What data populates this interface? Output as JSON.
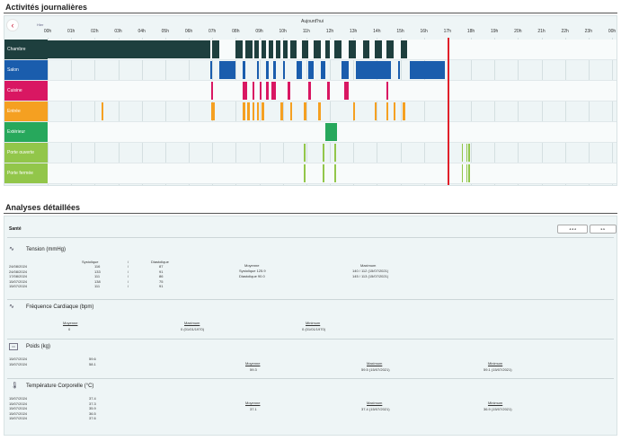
{
  "section1": {
    "title": "Activités journalières"
  },
  "timeline": {
    "back_label": "‹",
    "small_label": "Hier",
    "today_label": "Aujourd'hui",
    "hours": [
      "00h",
      "01h",
      "02h",
      "03h",
      "04h",
      "05h",
      "06h",
      "07h",
      "08h",
      "09h",
      "10h",
      "11h",
      "12h",
      "13h",
      "14h",
      "15h",
      "16h",
      "17h",
      "18h",
      "19h",
      "20h",
      "21h",
      "22h",
      "23h",
      "00h"
    ],
    "now_hour": 17.0,
    "rows": [
      {
        "label": "Chambre",
        "color": "#1e3f3e",
        "segments": [
          [
            0,
            6.9
          ],
          [
            7.0,
            7.3
          ],
          [
            8.0,
            8.3
          ],
          [
            8.4,
            8.7
          ],
          [
            8.8,
            9.0
          ],
          [
            9.1,
            9.3
          ],
          [
            9.4,
            9.6
          ],
          [
            9.7,
            9.9
          ],
          [
            10.0,
            10.2
          ],
          [
            10.3,
            10.6
          ],
          [
            10.8,
            11.1
          ],
          [
            11.3,
            11.6
          ],
          [
            11.8,
            12.0
          ],
          [
            12.2,
            12.5
          ],
          [
            12.8,
            13.1
          ],
          [
            13.4,
            13.7
          ],
          [
            13.9,
            14.2
          ],
          [
            14.4,
            14.7
          ],
          [
            15.0,
            15.3
          ]
        ]
      },
      {
        "label": "Salon",
        "color": "#1a5dad",
        "segments": [
          [
            6.9,
            7.0
          ],
          [
            7.3,
            8.0
          ],
          [
            8.3,
            8.4
          ],
          [
            8.9,
            9.0
          ],
          [
            9.3,
            9.4
          ],
          [
            9.6,
            9.7
          ],
          [
            10.0,
            10.1
          ],
          [
            10.6,
            10.8
          ],
          [
            11.1,
            11.3
          ],
          [
            11.6,
            11.8
          ],
          [
            12.5,
            12.8
          ],
          [
            13.1,
            14.6
          ],
          [
            14.9,
            15.0
          ],
          [
            15.4,
            16.9
          ]
        ]
      },
      {
        "label": "Cuisine",
        "color": "#d91762",
        "segments": [
          [
            6.95,
            7.05
          ],
          [
            8.3,
            8.5
          ],
          [
            8.7,
            8.8
          ],
          [
            9.0,
            9.1
          ],
          [
            9.3,
            9.4
          ],
          [
            9.5,
            9.7
          ],
          [
            10.2,
            10.3
          ],
          [
            11.1,
            11.2
          ],
          [
            11.9,
            12.0
          ],
          [
            12.6,
            12.8
          ],
          [
            14.4,
            14.5
          ]
        ]
      },
      {
        "label": "Entrée",
        "color": "#f5a021",
        "segments": [
          [
            2.3,
            2.35
          ],
          [
            6.95,
            7.05
          ],
          [
            7.0,
            7.1
          ],
          [
            8.3,
            8.4
          ],
          [
            8.5,
            8.6
          ],
          [
            8.7,
            8.8
          ],
          [
            8.9,
            9.0
          ],
          [
            9.1,
            9.2
          ],
          [
            9.9,
            10.0
          ],
          [
            10.3,
            10.4
          ],
          [
            10.9,
            11.0
          ],
          [
            11.5,
            11.6
          ],
          [
            13.0,
            13.05
          ],
          [
            13.9,
            14.0
          ],
          [
            14.4,
            14.5
          ],
          [
            14.7,
            14.8
          ],
          [
            15.1,
            15.2
          ]
        ]
      },
      {
        "label": "Extérieur",
        "color": "#27a85c",
        "segments": [
          [
            11.8,
            12.3
          ]
        ]
      },
      {
        "label": "Porte ouverte",
        "color": "#92c64a",
        "segments": [
          [
            10.9,
            10.95
          ],
          [
            11.7,
            11.75
          ],
          [
            12.2,
            12.25
          ],
          [
            17.6,
            17.65
          ],
          [
            17.8,
            17.85
          ],
          [
            17.9,
            17.95
          ]
        ]
      },
      {
        "label": "Porte fermée",
        "color": "#92c64a",
        "segments": [
          [
            10.9,
            10.95
          ],
          [
            11.7,
            11.75
          ],
          [
            12.2,
            12.25
          ],
          [
            17.6,
            17.65
          ],
          [
            17.8,
            17.85
          ],
          [
            17.9,
            17.95
          ]
        ]
      }
    ]
  },
  "section2": {
    "title": "Analyses détaillées"
  },
  "analyses": {
    "tab": "Santé",
    "btn_prev": "◂ ◂ ◂",
    "btn_next": "▸ ▸",
    "tension": {
      "title": "Tension (mmHg)",
      "col_sys": "Systolique",
      "col_dia": "Diastolique",
      "dates": [
        "24/08/2024",
        "24/08/2024",
        "17/08/2024",
        "15/07/2024",
        "15/07/2024"
      ],
      "sys": [
        "116",
        "133",
        "111",
        "138",
        "111"
      ],
      "dia": [
        "87",
        "91",
        "86",
        "75",
        "91"
      ],
      "moyenne_label": "Moyenne",
      "moyenne_sys": "Systolique 125.9",
      "moyenne_dia": "Diastolique 90.0",
      "maximum_label": "Maximum",
      "max_1": "140 / 112 (15/07/2021)",
      "max_2": "145 / 113 (15/07/2021)"
    },
    "frequence": {
      "title": "Fréquence Cardiaque (bpm)",
      "moyenne_label": "Moyenne",
      "moyenne_val": "0",
      "maximum_label": "Maximum",
      "maximum_val": "0 (01/01/1970)",
      "minimum_label": "Minimum",
      "minimum_val": "0 (01/01/1970)"
    },
    "poids": {
      "title": "Poids (kg)",
      "dates": [
        "15/07/2024",
        "15/07/2024"
      ],
      "vals": [
        "59.6",
        "58.1"
      ],
      "moyenne_label": "Moyenne",
      "moyenne_val": "59.3",
      "maximum_label": "Maximum",
      "maximum_val": "59.5 (15/07/2021)",
      "minimum_label": "Minimum",
      "minimum_val": "59.1 (15/07/2021)"
    },
    "temperature": {
      "title": "Température Corporelle (°C)",
      "dates": [
        "15/07/2024",
        "15/07/2024",
        "15/07/2024",
        "15/07/2024",
        "15/07/2024"
      ],
      "vals": [
        "37.4",
        "37.3",
        "35.9",
        "36.5",
        "37.6"
      ],
      "moyenne_label": "Moyenne",
      "moyenne_val": "37.1",
      "maximum_label": "Maximum",
      "maximum_val": "37.4 (15/07/2021)",
      "minimum_label": "Minimum",
      "minimum_val": "36.9 (15/07/2021)"
    }
  }
}
